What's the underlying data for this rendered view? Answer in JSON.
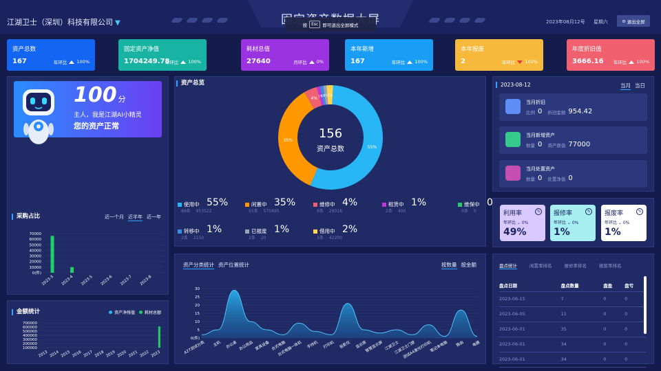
{
  "header": {
    "company": "江湖卫士（深圳）科技有限公司",
    "title": "固定资产数据大屏",
    "toast_pre": "按",
    "toast_key": "Esc",
    "toast_post": "即可退出全屏模式",
    "date": "2023年08月12号",
    "weekday": "星期六",
    "exit": "退出全屏"
  },
  "kpis": [
    {
      "label": "资产总数",
      "value": "167",
      "cmp_label": "年环比",
      "cmp": "100%",
      "dir": "up",
      "color": "#1565f5"
    },
    {
      "label": "固定资产净值",
      "value": "1704249.78",
      "cmp_label": "年环比",
      "cmp": "100%",
      "dir": "up",
      "color": "#19b3a3"
    },
    {
      "label": "耗材总值",
      "value": "27640",
      "cmp_label": "月环比",
      "cmp": "0%",
      "dir": "up",
      "color": "#9b34e0"
    },
    {
      "label": "本年新增",
      "value": "167",
      "cmp_label": "年环比",
      "cmp": "100%",
      "dir": "up",
      "color": "#1a9ef5"
    },
    {
      "label": "本年报废",
      "value": "2",
      "cmp_label": "年环比",
      "cmp": "100%",
      "dir": "down",
      "color": "#f6b93b"
    },
    {
      "label": "年度折旧值",
      "value": "3666.16",
      "cmp_label": "年环比",
      "cmp": "100%",
      "dir": "up",
      "color": "#f0606e"
    }
  ],
  "ai": {
    "score": "100",
    "unit": "分",
    "greeting": "主人，我是江湖AI小精灵",
    "status": "您的资产正常"
  },
  "purchase": {
    "title": "采购占比",
    "tabs": [
      "近一个月",
      "近半年",
      "近一年"
    ],
    "active_tab": 1
  },
  "amount": {
    "title": "金额统计",
    "legend": [
      "资产净残值",
      "耗材总额"
    ]
  },
  "overview": {
    "title": "资产总览",
    "total": "156",
    "total_label": "资产总数"
  },
  "status": [
    {
      "name": "使用中",
      "pct": "55%",
      "count": "86条",
      "amount": "953522",
      "color": "#29b6f6"
    },
    {
      "name": "闲置中",
      "pct": "35%",
      "count": "55条",
      "amount": "575895",
      "color": "#ff9800"
    },
    {
      "name": "维修中",
      "pct": "4%",
      "count": "6条",
      "amount": "28018",
      "color": "#f0606e"
    },
    {
      "name": "租赁中",
      "pct": "1%",
      "count": "2条",
      "amount": "400",
      "color": "#c335d6"
    },
    {
      "name": "维保中",
      "pct": "0%",
      "count": "0条",
      "amount": "0",
      "color": "#1fcf6a"
    },
    {
      "name": "转移中",
      "pct": "1%",
      "count": "2条",
      "amount": "2150",
      "color": "#3c8ce6"
    },
    {
      "name": "已报废",
      "pct": "1%",
      "count": "2条",
      "amount": "20",
      "color": "#9aa3b8"
    },
    {
      "name": "借用中",
      "pct": "2%",
      "count": "3条",
      "amount": "42200",
      "color": "#ffd54f"
    }
  ],
  "dist": {
    "tabs": [
      "资产分类统计",
      "资产位置统计"
    ],
    "metric_tabs": [
      "按数量",
      "按金额"
    ]
  },
  "monthly": {
    "date": "2023-08-12",
    "tabs": [
      "当月",
      "当日"
    ],
    "cards": [
      {
        "title": "当月折旧",
        "l1": "比例",
        "v1": "0",
        "l2": "折旧金额",
        "v2": "954.42",
        "color": "#5e8df5"
      },
      {
        "title": "当月新增资产",
        "l1": "数量",
        "v1": "0",
        "l2": "资产原值",
        "v2": "77000",
        "color": "#36c98e"
      },
      {
        "title": "当月处置资产",
        "l1": "数量",
        "v1": "0",
        "l2": "处置净值",
        "v2": "0",
        "color": "#c44fb0"
      }
    ]
  },
  "rates": [
    {
      "name": "利用率",
      "sub": "年环比",
      "subv": "0%",
      "value": "49%",
      "bg": "#d9c9ff"
    },
    {
      "name": "报修率",
      "sub": "年环比",
      "subv": "0%",
      "value": "1%",
      "bg": "#a6eef0"
    },
    {
      "name": "报废率",
      "sub": "年环比",
      "subv": "0%",
      "value": "1%",
      "bg": "#ffffff"
    }
  ],
  "inventory": {
    "tabs": [
      "盘点统计",
      "闲置率排名",
      "报修率排名",
      "报废率排名"
    ],
    "headers": [
      "盘点日期",
      "盘点数量",
      "盘盈",
      "盘亏"
    ],
    "rows": [
      [
        "2023-06-15",
        "7",
        "0",
        "0"
      ],
      [
        "2023-06-05",
        "11",
        "0",
        "0"
      ],
      [
        "2023-06-01",
        "35",
        "0",
        "0"
      ],
      [
        "2023-06-01",
        "34",
        "0",
        "0"
      ],
      [
        "2023-06-01",
        "34",
        "0",
        "0"
      ]
    ]
  },
  "chart_data": [
    {
      "type": "donut",
      "title": "资产总览",
      "categories": [
        "使用中",
        "闲置中",
        "维修中",
        "租赁中",
        "维保中",
        "转移中",
        "已报废",
        "借用中"
      ],
      "values": [
        55,
        35,
        4,
        1,
        0,
        1,
        1,
        2
      ],
      "labels": [
        "55%",
        "35%",
        "4%",
        "1%",
        "0%",
        "1%",
        "1%",
        "2%"
      ]
    },
    {
      "type": "bar",
      "title": "采购占比",
      "categories": [
        "2023-3",
        "2023-4",
        "2023-5",
        "2023-6",
        "2023-7",
        "2023-8"
      ],
      "values": [
        66000,
        10000,
        0,
        0,
        0,
        0
      ],
      "ylim": [
        0,
        70000
      ],
      "yticks": [
        "70000",
        "60000",
        "50000",
        "40000",
        "30000",
        "20000",
        "10000",
        "0(件)"
      ]
    },
    {
      "type": "bar",
      "title": "金额统计",
      "categories": [
        "2013",
        "2014",
        "2015",
        "2016",
        "2017",
        "2018",
        "2019",
        "2020",
        "2021",
        "2022",
        "2023"
      ],
      "series": [
        {
          "name": "资产净残值",
          "values": [
            0,
            0,
            0,
            0,
            0,
            0,
            0,
            0,
            0,
            0,
            0
          ]
        },
        {
          "name": "耗材总额",
          "values": [
            0,
            0,
            0,
            0,
            0,
            0,
            0,
            0,
            0,
            0,
            600000
          ]
        }
      ],
      "ylim": [
        0,
        700000
      ],
      "yticks": [
        "700000",
        "600000",
        "500000",
        "400000",
        "300000",
        "200000",
        "100000"
      ]
    },
    {
      "type": "area",
      "title": "资产分类统计",
      "categories": [
        "A27测试分类",
        "主机",
        "办公桌",
        "办公用品",
        "家具设备",
        "台式电脑",
        "台式电脑一体机",
        "手持机",
        "打印机",
        "投影仪",
        "显示屏",
        "智慧显示屏",
        "江湖卫士",
        "江湖卫士门禁",
        "测试A4激光打印机",
        "笔记本电脑",
        "路由",
        "电器"
      ],
      "values": [
        2,
        5,
        29,
        10,
        5,
        2,
        9,
        4,
        2,
        21,
        5,
        3,
        5,
        2,
        8,
        1,
        17,
        1
      ],
      "ylim": [
        0,
        30
      ],
      "yticks": [
        "30",
        "25",
        "20",
        "15",
        "10",
        "5",
        "0(件)"
      ]
    }
  ]
}
